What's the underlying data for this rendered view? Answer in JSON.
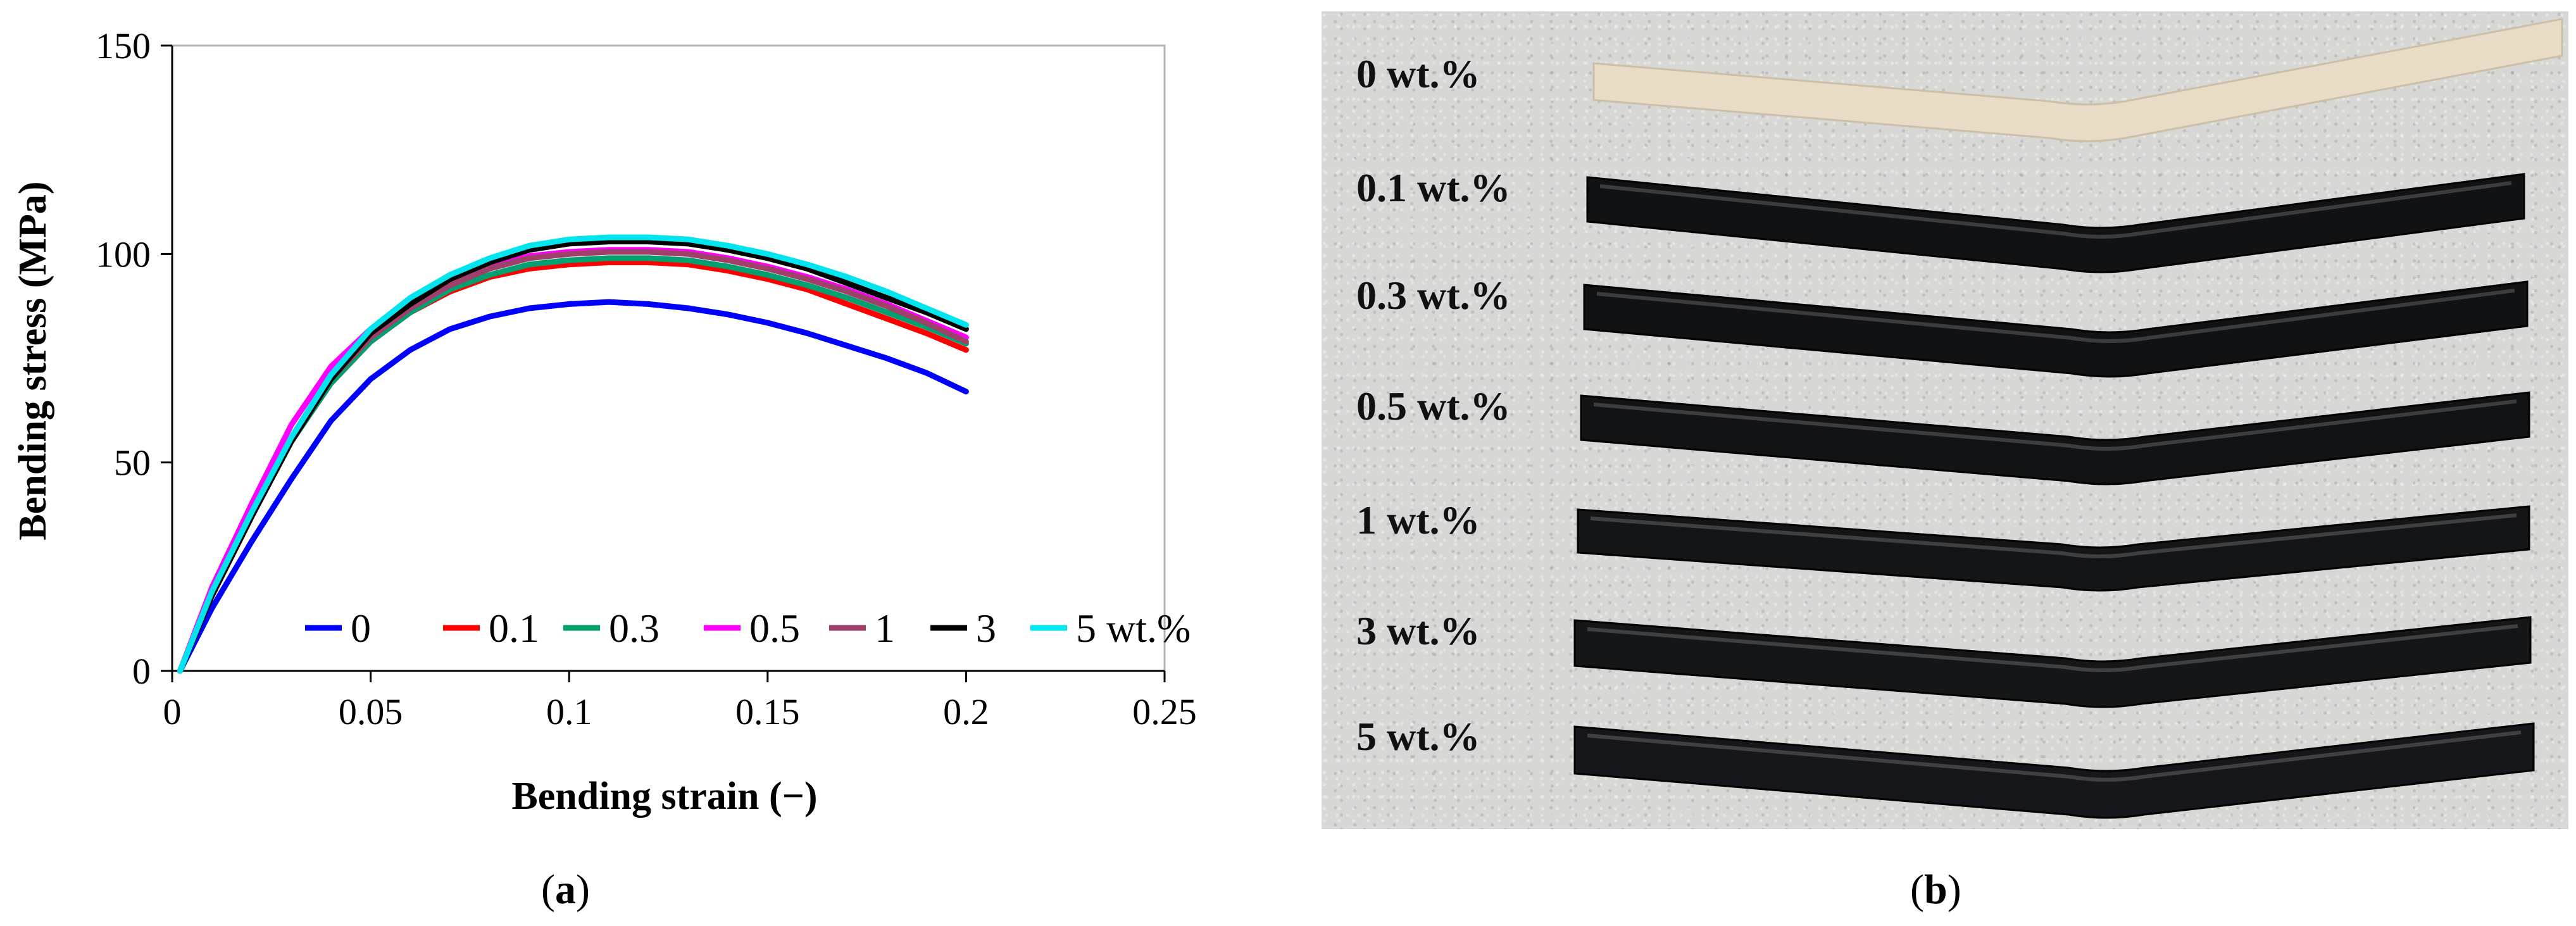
{
  "chart_data": {
    "type": "line",
    "xlabel": "Bending strain (−)",
    "ylabel": "Bending stress (MPa)",
    "xlim": [
      0,
      0.25
    ],
    "ylim": [
      0,
      150
    ],
    "xticks": [
      "0",
      "0.05",
      "0.1",
      "0.15",
      "0.2",
      "0.25"
    ],
    "yticks": [
      "0",
      "50",
      "100",
      "150"
    ],
    "xtick_values": [
      0,
      0.05,
      0.1,
      0.15,
      0.2,
      0.25
    ],
    "ytick_values": [
      0,
      50,
      100,
      150
    ],
    "grid": false,
    "legend_placement": "bottom-right",
    "series": [
      {
        "name": "0",
        "color": "#0000ff",
        "x": [
          0.002,
          0.01,
          0.02,
          0.03,
          0.04,
          0.05,
          0.06,
          0.07,
          0.08,
          0.09,
          0.1,
          0.11,
          0.12,
          0.13,
          0.14,
          0.15,
          0.16,
          0.17,
          0.18,
          0.19,
          0.2
        ],
        "y": [
          0,
          15,
          31,
          46,
          60,
          70,
          77,
          82,
          85,
          87,
          88,
          88.5,
          88,
          87,
          85.5,
          83.5,
          81,
          78,
          75,
          71.5,
          67
        ]
      },
      {
        "name": "0.1",
        "color": "#ff0000",
        "x": [
          0.002,
          0.01,
          0.02,
          0.03,
          0.04,
          0.05,
          0.06,
          0.07,
          0.08,
          0.09,
          0.1,
          0.11,
          0.12,
          0.13,
          0.14,
          0.15,
          0.16,
          0.17,
          0.18,
          0.19,
          0.2
        ],
        "y": [
          0,
          18,
          37,
          55,
          69,
          79,
          86,
          91,
          94.5,
          96.5,
          97.5,
          98,
          98,
          97.5,
          96,
          94,
          91.5,
          88,
          84.5,
          81,
          77
        ]
      },
      {
        "name": "0.3",
        "color": "#00a070",
        "x": [
          0.002,
          0.01,
          0.02,
          0.03,
          0.04,
          0.05,
          0.06,
          0.07,
          0.08,
          0.09,
          0.1,
          0.11,
          0.12,
          0.13,
          0.14,
          0.15,
          0.16,
          0.17,
          0.18,
          0.19,
          0.2
        ],
        "y": [
          0,
          18,
          37,
          55,
          69,
          79,
          86,
          91.5,
          95,
          97.5,
          98.5,
          99,
          99,
          98.5,
          97,
          95,
          92.5,
          89.5,
          86,
          82.5,
          78.5
        ]
      },
      {
        "name": "0.5",
        "color": "#ff00ff",
        "x": [
          0.002,
          0.01,
          0.02,
          0.03,
          0.04,
          0.05,
          0.06,
          0.07,
          0.08,
          0.09,
          0.1,
          0.11,
          0.12,
          0.13,
          0.14,
          0.15,
          0.16,
          0.17,
          0.18,
          0.19,
          0.2
        ],
        "y": [
          0,
          20,
          40,
          59,
          73,
          82,
          89,
          94,
          97,
          99.5,
          100.5,
          101,
          101,
          100.5,
          99,
          97,
          94.5,
          91.5,
          88,
          84,
          80
        ]
      },
      {
        "name": "1",
        "color": "#a0406a",
        "x": [
          0.002,
          0.01,
          0.02,
          0.03,
          0.04,
          0.05,
          0.06,
          0.07,
          0.08,
          0.09,
          0.1,
          0.11,
          0.12,
          0.13,
          0.14,
          0.15,
          0.16,
          0.17,
          0.18,
          0.19,
          0.2
        ],
        "y": [
          0,
          18,
          37,
          55,
          70,
          80,
          87,
          92.5,
          96.5,
          99,
          100,
          100.5,
          100.5,
          100,
          98.5,
          96.5,
          94,
          91,
          87.5,
          83.5,
          79
        ]
      },
      {
        "name": "3",
        "color": "#000000",
        "x": [
          0.002,
          0.01,
          0.02,
          0.03,
          0.04,
          0.05,
          0.06,
          0.07,
          0.08,
          0.09,
          0.1,
          0.11,
          0.12,
          0.13,
          0.14,
          0.15,
          0.16,
          0.17,
          0.18,
          0.19,
          0.2
        ],
        "y": [
          0,
          18,
          37,
          55,
          70,
          81,
          88,
          94,
          98,
          101,
          102.5,
          103,
          103,
          102.5,
          101,
          99,
          96.5,
          93,
          89.5,
          86,
          82
        ]
      },
      {
        "name": "5 wt.%",
        "color": "#00e5ee",
        "x": [
          0.002,
          0.01,
          0.02,
          0.03,
          0.04,
          0.05,
          0.06,
          0.07,
          0.08,
          0.09,
          0.1,
          0.11,
          0.12,
          0.13,
          0.14,
          0.15,
          0.16,
          0.17,
          0.18,
          0.19,
          0.2
        ],
        "y": [
          0,
          19,
          38,
          56,
          71,
          82,
          89.5,
          95,
          99,
          102,
          103.5,
          104,
          104,
          103.5,
          102,
          100,
          97.5,
          94.5,
          91,
          87,
          83
        ]
      }
    ]
  },
  "captions": {
    "a_open": "(",
    "a_letter": "a",
    "a_close": ")",
    "b_open": "(",
    "b_letter": "b",
    "b_close": ")"
  },
  "photo": {
    "samples": [
      {
        "label": "0 wt.%",
        "color": "#e8dcc6",
        "edge": "#cbbfa7"
      },
      {
        "label": "0.1 wt.%",
        "color": "#111214",
        "edge": "#000000"
      },
      {
        "label": "0.3 wt.%",
        "color": "#111214",
        "edge": "#000000"
      },
      {
        "label": "0.5 wt.%",
        "color": "#121315",
        "edge": "#000000"
      },
      {
        "label": "1 wt.%",
        "color": "#141517",
        "edge": "#000000"
      },
      {
        "label": "3 wt.%",
        "color": "#151618",
        "edge": "#000000"
      },
      {
        "label": "5 wt.%",
        "color": "#16171a",
        "edge": "#000000"
      }
    ]
  }
}
